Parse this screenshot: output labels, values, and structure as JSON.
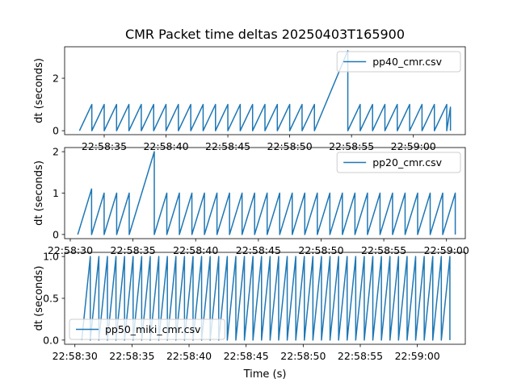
{
  "title": "CMR Packet time deltas 20250403T165900",
  "xlabel": "Time (s)",
  "chart_data": [
    {
      "type": "line",
      "series": [
        {
          "name": "pp40_cmr.csv",
          "color": "#1f77b4",
          "points": [
            [
              31.0,
              0
            ],
            [
              32.0,
              1
            ],
            [
              32.0,
              0
            ],
            [
              33.0,
              1
            ],
            [
              33.0,
              0
            ],
            [
              34.0,
              1
            ],
            [
              34.0,
              0
            ],
            [
              35.0,
              1
            ],
            [
              35.0,
              0
            ],
            [
              36.0,
              1
            ],
            [
              36.0,
              0
            ],
            [
              37.0,
              1
            ],
            [
              37.0,
              0
            ],
            [
              38.0,
              1
            ],
            [
              38.0,
              0
            ],
            [
              39.0,
              1
            ],
            [
              39.0,
              0
            ],
            [
              40.0,
              1
            ],
            [
              40.0,
              0
            ],
            [
              41.0,
              1
            ],
            [
              41.0,
              0
            ],
            [
              42.0,
              1
            ],
            [
              42.0,
              0
            ],
            [
              43.0,
              1
            ],
            [
              43.0,
              0
            ],
            [
              44.0,
              1
            ],
            [
              44.0,
              0
            ],
            [
              45.0,
              1
            ],
            [
              45.0,
              0
            ],
            [
              46.0,
              1
            ],
            [
              46.0,
              0
            ],
            [
              47.0,
              1
            ],
            [
              47.0,
              0
            ],
            [
              48.0,
              1
            ],
            [
              48.0,
              0
            ],
            [
              49.0,
              1
            ],
            [
              49.0,
              0
            ],
            [
              50.0,
              1
            ],
            [
              50.0,
              0
            ],
            [
              52.7,
              3.05
            ],
            [
              52.7,
              0
            ],
            [
              53.7,
              1
            ],
            [
              53.7,
              0
            ],
            [
              54.7,
              1
            ],
            [
              54.7,
              0
            ],
            [
              55.7,
              1
            ],
            [
              55.7,
              0
            ],
            [
              56.7,
              1
            ],
            [
              56.7,
              0
            ],
            [
              57.7,
              1
            ],
            [
              57.7,
              0
            ],
            [
              58.7,
              1
            ],
            [
              58.7,
              0
            ],
            [
              59.7,
              1
            ],
            [
              59.7,
              0
            ],
            [
              60.7,
              1
            ],
            [
              60.7,
              0
            ],
            [
              61.0,
              0.9
            ],
            [
              61.0,
              0
            ]
          ]
        }
      ],
      "xlim": [
        29.8,
        62.2
      ],
      "ylim": [
        -0.15,
        3.2
      ],
      "yticks": [
        0,
        2
      ],
      "xticks": [
        [
          33.0,
          "22:58:35"
        ],
        [
          38.0,
          "22:58:40"
        ],
        [
          43.0,
          "22:58:45"
        ],
        [
          48.0,
          "22:58:50"
        ],
        [
          53.0,
          "22:58:55"
        ],
        [
          58.0,
          "22:59:00"
        ]
      ],
      "ylabel": "dt (seconds)",
      "legend": "upper right"
    },
    {
      "type": "line",
      "series": [
        {
          "name": "pp20_cmr.csv",
          "color": "#1f77b4",
          "points": [
            [
              30.6,
              0
            ],
            [
              31.7,
              1.1
            ],
            [
              31.7,
              0
            ],
            [
              32.7,
              1
            ],
            [
              32.7,
              0
            ],
            [
              33.7,
              1
            ],
            [
              33.7,
              0
            ],
            [
              34.7,
              1
            ],
            [
              34.7,
              0
            ],
            [
              36.7,
              2
            ],
            [
              36.7,
              0
            ],
            [
              37.7,
              1
            ],
            [
              37.7,
              0
            ],
            [
              38.7,
              1
            ],
            [
              38.7,
              0
            ],
            [
              39.7,
              1
            ],
            [
              39.7,
              0
            ],
            [
              40.7,
              1
            ],
            [
              40.7,
              0
            ],
            [
              41.7,
              1
            ],
            [
              41.7,
              0
            ],
            [
              42.7,
              1
            ],
            [
              42.7,
              0
            ],
            [
              43.7,
              1
            ],
            [
              43.7,
              0
            ],
            [
              44.7,
              1
            ],
            [
              44.7,
              0
            ],
            [
              45.7,
              1
            ],
            [
              45.7,
              0
            ],
            [
              46.7,
              1
            ],
            [
              46.7,
              0
            ],
            [
              47.7,
              1
            ],
            [
              47.7,
              0
            ],
            [
              48.7,
              1
            ],
            [
              48.7,
              0
            ],
            [
              49.7,
              1
            ],
            [
              49.7,
              0
            ],
            [
              50.7,
              1
            ],
            [
              50.7,
              0
            ],
            [
              51.7,
              1
            ],
            [
              51.7,
              0
            ],
            [
              52.7,
              1
            ],
            [
              52.7,
              0
            ],
            [
              53.7,
              1
            ],
            [
              53.7,
              0
            ],
            [
              54.7,
              1
            ],
            [
              54.7,
              0
            ],
            [
              55.7,
              1
            ],
            [
              55.7,
              0
            ],
            [
              56.7,
              1
            ],
            [
              56.7,
              0
            ],
            [
              57.7,
              1
            ],
            [
              57.7,
              0
            ],
            [
              58.7,
              1
            ],
            [
              58.7,
              0
            ],
            [
              59.7,
              1
            ],
            [
              59.7,
              0
            ],
            [
              60.7,
              1
            ],
            [
              60.7,
              0
            ]
          ]
        }
      ],
      "xlim": [
        29.55,
        61.5
      ],
      "ylim": [
        -0.1,
        2.1
      ],
      "yticks": [
        0,
        1,
        2
      ],
      "xticks": [
        [
          30.0,
          "22:58:30"
        ],
        [
          35.0,
          "22:58:35"
        ],
        [
          40.0,
          "22:58:40"
        ],
        [
          45.0,
          "22:58:45"
        ],
        [
          50.0,
          "22:58:50"
        ],
        [
          55.0,
          "22:58:55"
        ],
        [
          60.0,
          "22:59:00"
        ]
      ],
      "ylabel": "dt (seconds)",
      "legend": "upper right"
    },
    {
      "type": "line",
      "series": [
        {
          "name": "pp50_miki_cmr.csv",
          "color": "#1f77b4",
          "points": [
            [
              30.6,
              0
            ],
            [
              31.35,
              1
            ],
            [
              31.35,
              0
            ],
            [
              32.1,
              1
            ],
            [
              32.1,
              0
            ],
            [
              32.85,
              1
            ],
            [
              32.85,
              0
            ],
            [
              33.6,
              1
            ],
            [
              33.6,
              0
            ],
            [
              34.35,
              1
            ],
            [
              34.35,
              0
            ],
            [
              35.1,
              1
            ],
            [
              35.1,
              0
            ],
            [
              35.85,
              1
            ],
            [
              35.85,
              0
            ],
            [
              36.6,
              1
            ],
            [
              36.6,
              0
            ],
            [
              37.35,
              1
            ],
            [
              37.35,
              0
            ],
            [
              38.1,
              1
            ],
            [
              38.1,
              0
            ],
            [
              38.85,
              1
            ],
            [
              38.85,
              0
            ],
            [
              39.6,
              1
            ],
            [
              39.6,
              0
            ],
            [
              40.35,
              1
            ],
            [
              40.35,
              0
            ],
            [
              41.1,
              1
            ],
            [
              41.1,
              0
            ],
            [
              41.85,
              1
            ],
            [
              41.85,
              0
            ],
            [
              42.6,
              1
            ],
            [
              42.6,
              0
            ],
            [
              43.35,
              1
            ],
            [
              43.35,
              0
            ],
            [
              44.1,
              1
            ],
            [
              44.1,
              0
            ],
            [
              44.85,
              1
            ],
            [
              44.85,
              0
            ],
            [
              45.6,
              1
            ],
            [
              45.6,
              0
            ],
            [
              46.35,
              1
            ],
            [
              46.35,
              0
            ],
            [
              47.1,
              1
            ],
            [
              47.1,
              0
            ],
            [
              47.85,
              1
            ],
            [
              47.85,
              0
            ],
            [
              48.6,
              1
            ],
            [
              48.6,
              0
            ],
            [
              49.35,
              1
            ],
            [
              49.35,
              0
            ],
            [
              50.1,
              1
            ],
            [
              50.1,
              0
            ],
            [
              50.85,
              1
            ],
            [
              50.85,
              0
            ],
            [
              51.6,
              1
            ],
            [
              51.6,
              0
            ],
            [
              52.35,
              1
            ],
            [
              52.35,
              0
            ],
            [
              53.1,
              1
            ],
            [
              53.1,
              0
            ],
            [
              53.85,
              1
            ],
            [
              53.85,
              0
            ],
            [
              54.6,
              1
            ],
            [
              54.6,
              0
            ],
            [
              55.35,
              1
            ],
            [
              55.35,
              0
            ],
            [
              56.1,
              1
            ],
            [
              56.1,
              0
            ],
            [
              56.85,
              1
            ],
            [
              56.85,
              0
            ],
            [
              57.6,
              1
            ],
            [
              57.6,
              0
            ],
            [
              58.35,
              1
            ],
            [
              58.35,
              0
            ],
            [
              59.1,
              1
            ],
            [
              59.1,
              0
            ],
            [
              59.85,
              1
            ],
            [
              59.85,
              0
            ],
            [
              60.6,
              1
            ],
            [
              60.6,
              0
            ],
            [
              61.35,
              1
            ],
            [
              61.35,
              0
            ],
            [
              62.1,
              1
            ],
            [
              62.1,
              0
            ],
            [
              62.85,
              1
            ],
            [
              62.85,
              0
            ]
          ]
        }
      ],
      "xlim": [
        29.1,
        64.2
      ],
      "ylim": [
        -0.05,
        1.05
      ],
      "yticks": [
        0.0,
        0.5,
        1.0
      ],
      "xticks": [
        [
          30.0,
          "22:58:30"
        ],
        [
          35.0,
          "22:58:35"
        ],
        [
          40.0,
          "22:58:40"
        ],
        [
          45.0,
          "22:58:45"
        ],
        [
          50.0,
          "22:58:50"
        ],
        [
          55.0,
          "22:58:55"
        ],
        [
          60.0,
          "22:59:00"
        ]
      ],
      "ylabel": "dt (seconds)",
      "legend": "lower left"
    }
  ]
}
